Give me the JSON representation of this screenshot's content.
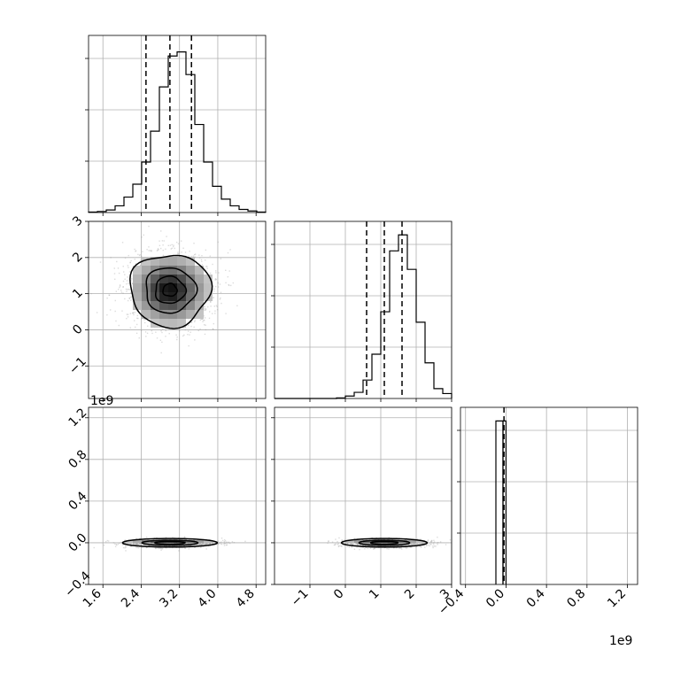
{
  "chart_data": {
    "type": "corner",
    "bins": 20,
    "quantile_lines": "dashed",
    "grid": true,
    "offset_label": "1e9",
    "panels": {
      "hist_param_1": {
        "type": "histogram",
        "xlim": [
          1.3,
          5.0
        ],
        "bin_start": 1.3,
        "bin_width": 0.185,
        "counts": [
          1,
          2,
          5,
          13,
          30,
          55,
          98,
          158,
          244,
          304,
          312,
          268,
          171,
          98,
          51,
          26,
          13,
          6,
          3,
          1
        ],
        "ymax": 344,
        "quantiles": [
          2.5,
          3.0,
          3.45
        ]
      },
      "hist_param_2": {
        "type": "histogram",
        "xlim": [
          -2.0,
          3.0
        ],
        "bin_start": -2.0,
        "bin_width": 0.25,
        "counts": [
          0,
          0,
          0,
          0,
          0,
          0,
          0,
          1,
          4,
          10,
          30,
          72,
          141,
          240,
          266,
          210,
          124,
          58,
          16,
          8
        ],
        "ymax": 288,
        "quantiles": [
          0.6,
          1.1,
          1.6
        ]
      },
      "hist_param_3": {
        "type": "histogram",
        "xlim": [
          -0.45,
          1.3
        ],
        "ylim_max": 1.3,
        "bars": [
          {
            "x0": -0.1,
            "x1": -0.03,
            "value": 1.2
          },
          {
            "x0": -0.03,
            "x1": 0.0,
            "value": 1.2
          }
        ],
        "quantiles": [
          -0.02
        ]
      },
      "scatter_2_vs_1": {
        "type": "density_scatter",
        "xlim": [
          1.3,
          5.0
        ],
        "ylim": [
          -1.9,
          3.0
        ],
        "center": [
          3.0,
          1.1
        ],
        "sigma": [
          0.42,
          0.5
        ],
        "contour_levels": [
          0.25,
          0.5,
          0.9,
          1.6
        ]
      },
      "scatter_3_vs_1": {
        "type": "density_scatter",
        "xlim": [
          1.3,
          5.0
        ],
        "ylim": [
          -0.4,
          1.3
        ],
        "center": [
          3.0,
          0.0
        ],
        "sigma": [
          0.45,
          0.012
        ]
      },
      "scatter_3_vs_2": {
        "type": "density_scatter",
        "xlim": [
          -2.0,
          3.0
        ],
        "ylim": [
          -0.4,
          1.3
        ],
        "center": [
          1.1,
          0.0
        ],
        "sigma": [
          0.55,
          0.012
        ]
      }
    },
    "ticks": {
      "y_row2": [
        "3",
        "2",
        "1",
        "0",
        "−1"
      ],
      "y_row3": [
        "1.2",
        "0.8",
        "0.4",
        "0.0",
        "−0.4"
      ],
      "x_col1": [
        "1.6",
        "2.4",
        "3.2",
        "4.0",
        "4.8"
      ],
      "x_col2": [
        "−1",
        "0",
        "1",
        "2",
        "3"
      ],
      "x_col3": [
        "−0.4",
        "0.0",
        "0.4",
        "0.8",
        "1.2"
      ]
    }
  }
}
